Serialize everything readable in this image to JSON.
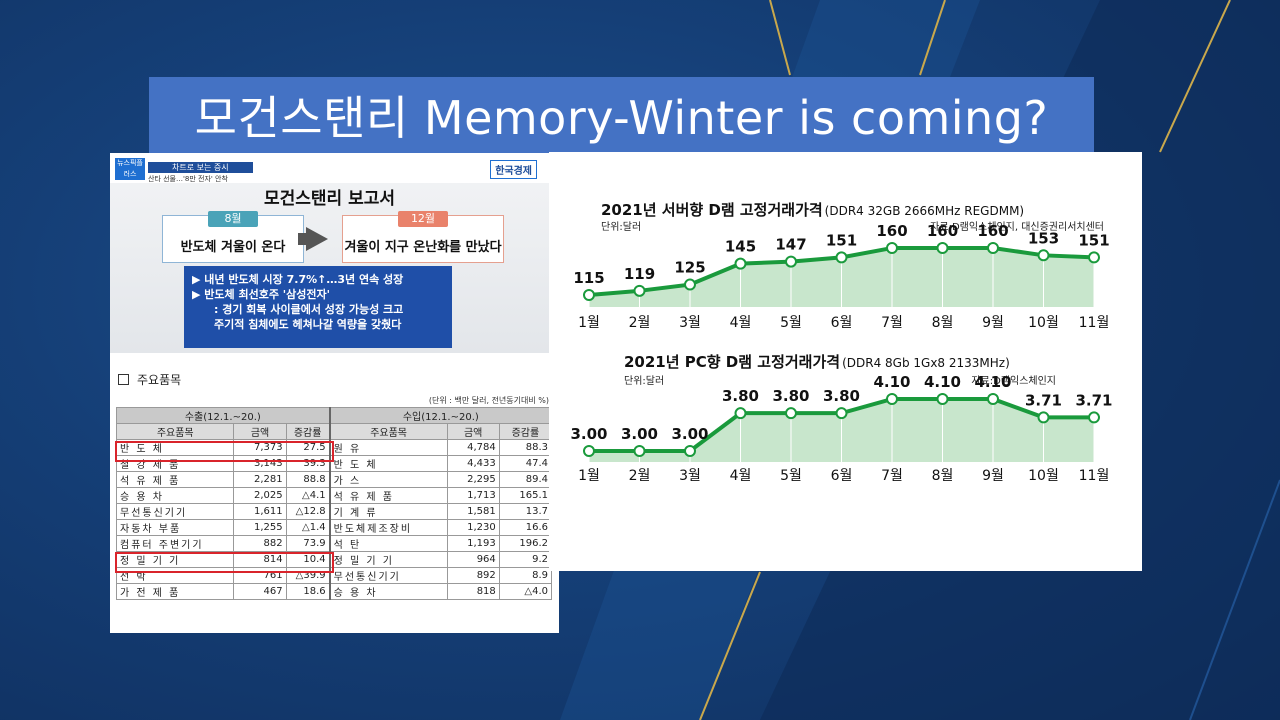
{
  "slide": {
    "title": "모건스탠리 Memory-Winter is coming?",
    "colors": {
      "title_bar": "#4472c4",
      "background": "#153f77",
      "gold_line": "#c9a84c",
      "line_green": "#1a9a3c",
      "fill_green": "#c8e6cc",
      "highlight_red": "#d9242b"
    }
  },
  "news": {
    "logo": "뉴스픽플러스",
    "section": "차트로 보는 증시",
    "subhead": "산타 선물…'8만 전자' 안착",
    "brand": "한국경제",
    "headline": "모건스탠리 보고서",
    "aug_label": "8월",
    "aug_text": "반도체 겨울이 온다",
    "dec_label": "12월",
    "dec_text": "겨울이 지구 온난화를 만났다",
    "bullets": [
      "▶ 내년 반도체 시장 7.7%↑…3년 연속 성장",
      "▶ 반도체 최선호주 '삼성전자'",
      ": 경기 회복 사이클에서 성장 가능성 크고",
      "주기적 침체에도 헤쳐나갈 역량을 갖췄다"
    ],
    "icons": {
      "arrow": "right-arrow-icon",
      "info": "info-icon"
    }
  },
  "table": {
    "caption": "주요품목",
    "unit": "(단위 : 백만 달러, 전년동기대비 %)",
    "export_header": "수출(12.1.~20.)",
    "import_header": "수입(12.1.~20.)",
    "cols": [
      "주요품목",
      "금액",
      "증감률",
      "주요품목",
      "금액",
      "증감률"
    ],
    "rows": [
      [
        "반 도 체",
        "7,373",
        "27.5",
        "원 유",
        "4,784",
        "88.3"
      ],
      [
        "철 강 제 품",
        "3,143",
        "39.3",
        "반 도 체",
        "4,433",
        "47.4"
      ],
      [
        "석 유 제 품",
        "2,281",
        "88.8",
        "가 스",
        "2,295",
        "89.4"
      ],
      [
        "승 용 차",
        "2,025",
        "△4.1",
        "석 유 제 품",
        "1,713",
        "165.1"
      ],
      [
        "무선통신기기",
        "1,611",
        "△12.8",
        "기 계 류",
        "1,581",
        "13.7"
      ],
      [
        "자동차 부품",
        "1,255",
        "△1.4",
        "반도체제조장비",
        "1,230",
        "16.6"
      ],
      [
        "컴퓨터 주변기기",
        "882",
        "73.9",
        "석 탄",
        "1,193",
        "196.2"
      ],
      [
        "정 밀 기 기",
        "814",
        "10.4",
        "정 밀 기 기",
        "964",
        "9.2"
      ],
      [
        "선 박",
        "761",
        "△39.9",
        "무선통신기기",
        "892",
        "8.9"
      ],
      [
        "가 전 제 품",
        "467",
        "18.6",
        "승 용 차",
        "818",
        "△4.0"
      ]
    ]
  },
  "chart_data": [
    {
      "type": "line",
      "title": "2021년 서버향 D램 고정거래가격",
      "subtitle": "(DDR4 32GB 2666MHz REGDMM)",
      "unit": "단위:달러",
      "source": "자료:D램익스체인지, 대신증권리서치센터",
      "categories": [
        "1월",
        "2월",
        "3월",
        "4월",
        "5월",
        "6월",
        "7월",
        "8월",
        "9월",
        "10월",
        "11월"
      ],
      "values": [
        115,
        119,
        125,
        145,
        147,
        151,
        160,
        160,
        160,
        153,
        151
      ],
      "labels": [
        "115",
        "119",
        "125",
        "145",
        "147",
        "151",
        "160",
        "160",
        "160",
        "153",
        "151"
      ]
    },
    {
      "type": "line",
      "title": "2021년 PC향 D램 고정거래가격",
      "subtitle": "(DDR4 8Gb 1Gx8 2133MHz)",
      "unit": "단위:달러",
      "source": "자료:D램익스체인지",
      "categories": [
        "1월",
        "2월",
        "3월",
        "4월",
        "5월",
        "6월",
        "7월",
        "8월",
        "9월",
        "10월",
        "11월"
      ],
      "values": [
        3.0,
        3.0,
        3.0,
        3.8,
        3.8,
        3.8,
        4.1,
        4.1,
        4.1,
        3.71,
        3.71
      ],
      "labels": [
        "3.00",
        "3.00",
        "3.00",
        "3.80",
        "3.80",
        "3.80",
        "4.10",
        "4.10",
        "4.10",
        "3.71",
        "3.71"
      ]
    }
  ]
}
